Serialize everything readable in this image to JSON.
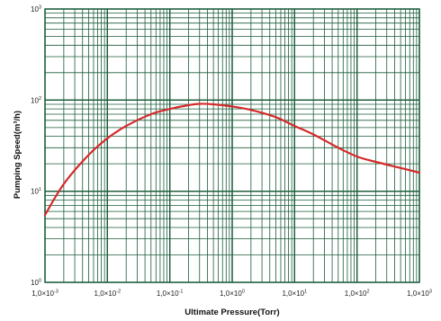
{
  "chart_data": {
    "type": "line",
    "xlabel": "Ultimate Pressure(Torr)",
    "ylabel": "Pumping Speed(m³/h)",
    "x_scale": "log",
    "y_scale": "log",
    "xlim": [
      0.001,
      1000
    ],
    "ylim": [
      1,
      1000
    ],
    "grid": true,
    "x_tick_labels": [
      {
        "mant": "1,0×10",
        "exp": "-3"
      },
      {
        "mant": "1,0×10",
        "exp": "-2"
      },
      {
        "mant": "1,0×10",
        "exp": "-1"
      },
      {
        "mant": "1,0×10",
        "exp": "0"
      },
      {
        "mant": "1,0×10",
        "exp": "1"
      },
      {
        "mant": "1,0×10",
        "exp": "2"
      },
      {
        "mant": "1,0×10",
        "exp": "3"
      }
    ],
    "y_tick_labels": [
      {
        "mant": "10",
        "exp": "3"
      },
      {
        "mant": "10",
        "exp": "2"
      },
      {
        "mant": "10",
        "exp": "1"
      },
      {
        "mant": "10",
        "exp": "0"
      }
    ],
    "series": [
      {
        "color": "#d42a2a",
        "x": [
          0.001,
          0.002,
          0.005,
          0.01,
          0.02,
          0.05,
          0.1,
          0.2,
          0.3,
          0.5,
          1,
          2,
          5,
          10,
          20,
          50,
          100,
          200,
          500,
          1000
        ],
        "y": [
          5.5,
          12,
          25,
          38,
          52,
          70,
          80,
          88,
          91,
          90,
          85,
          78,
          65,
          52,
          42,
          30,
          24,
          21,
          18,
          16
        ]
      }
    ],
    "colors": {
      "grid": "#1a5c3a",
      "curve": "#d42a2a",
      "background": "#ffffff"
    }
  }
}
